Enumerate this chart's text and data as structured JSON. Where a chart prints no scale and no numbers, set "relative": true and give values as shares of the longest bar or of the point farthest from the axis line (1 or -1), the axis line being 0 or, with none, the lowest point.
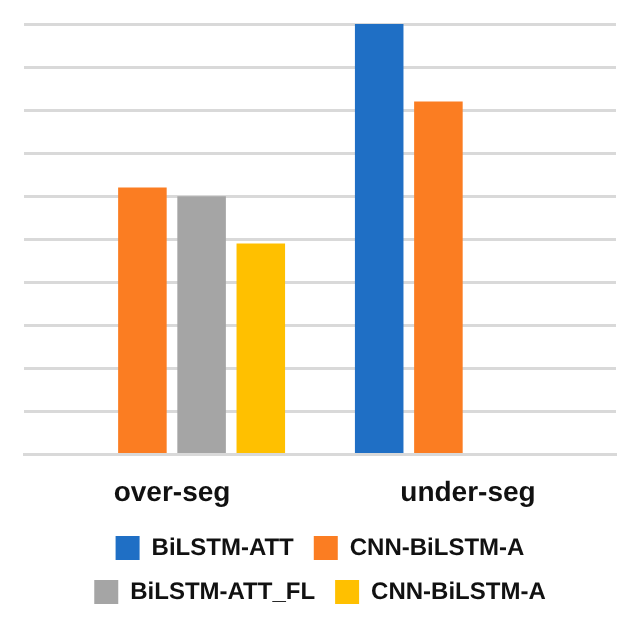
{
  "chart_data": {
    "type": "bar",
    "relative": true,
    "grid": "y",
    "legend": "bottom",
    "categories": [
      "over-seg",
      "under-seg"
    ],
    "series": [
      {
        "name": "BiLSTM-ATT",
        "color": "#1f6fc5",
        "values": [
          null,
          1
        ]
      },
      {
        "name": "CNN-BiLSTM-A",
        "color": "#fb7d22",
        "values": [
          0.62,
          0.82
        ]
      },
      {
        "name": "BiLSTM-ATT_FL",
        "color": "#a5a5a5",
        "values": [
          0.6,
          null
        ]
      },
      {
        "name": "CNN-BiLSTM-A",
        "color": "#ffc000",
        "values": [
          0.49,
          null
        ]
      }
    ]
  }
}
